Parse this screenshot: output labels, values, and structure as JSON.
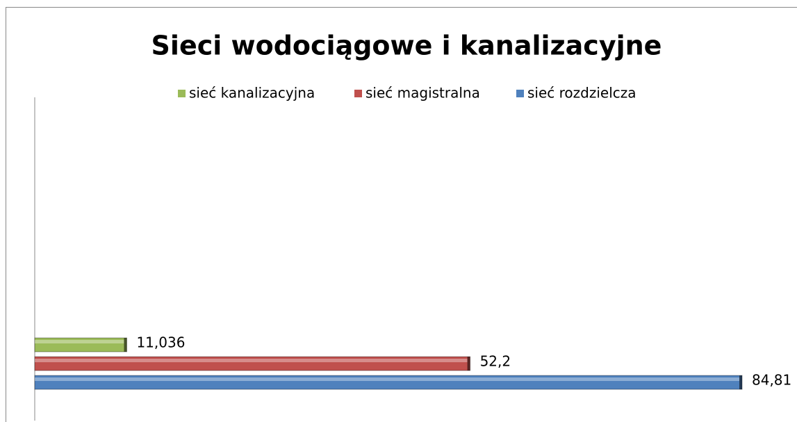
{
  "chart_data": {
    "type": "bar",
    "orientation": "horizontal",
    "title": "Sieci wodociągowe i kanalizacyjne",
    "categories": [
      null
    ],
    "series": [
      {
        "name": "sieć kanalizacyjna",
        "color": "#9bbb59",
        "values": [
          11.036
        ],
        "value_labels": [
          "11,036"
        ]
      },
      {
        "name": "sieć magistralna",
        "color": "#c0504d",
        "values": [
          52.2
        ],
        "value_labels": [
          "52,2"
        ]
      },
      {
        "name": "sieć rozdzielcza",
        "color": "#4f81bd",
        "values": [
          84.81
        ],
        "value_labels": [
          "84,81"
        ]
      }
    ],
    "legend": "top"
  }
}
